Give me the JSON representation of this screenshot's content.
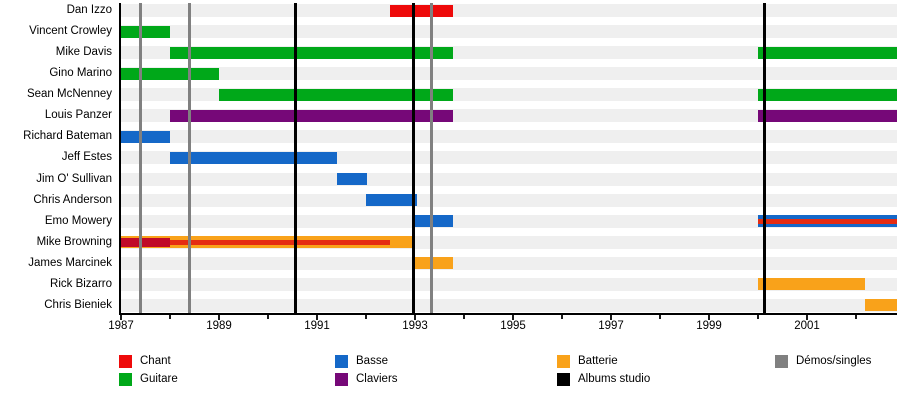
{
  "chart_data": {
    "type": "timeline",
    "description": "Band members timeline (Gantt-style), roles by color, 1987-2002",
    "x_axis": {
      "tick_start": 1987,
      "tick_end": 2002,
      "labeled_years": [
        1987,
        1989,
        1991,
        1993,
        1995,
        1997,
        1999,
        2001
      ],
      "domain_start": 1987.0,
      "domain_end": 2002.84
    },
    "colors": {
      "chant": "#ee0a0a",
      "guitare": "#00a819",
      "basse": "#1568c8",
      "claviers": "#760878",
      "batterie": "#f9a21a",
      "chant_dark": "#c00a28",
      "chant_stripe": "#e52c12",
      "album": "#000000",
      "demo": "#808080",
      "row_stripe": "#efefef"
    },
    "members": [
      {
        "name": "Dan Izzo",
        "bars": [
          {
            "color": "chant",
            "size": "full",
            "start": 1992.49,
            "end": 1993.78
          }
        ]
      },
      {
        "name": "Vincent Crowley",
        "bars": [
          {
            "color": "guitare",
            "size": "full",
            "start": 1987.0,
            "end": 1988.0
          }
        ]
      },
      {
        "name": "Mike Davis",
        "bars": [
          {
            "color": "guitare",
            "size": "full",
            "start": 1988.0,
            "end": 1993.78
          },
          {
            "color": "guitare",
            "size": "full",
            "start": 2000.0,
            "end": 2002.84
          }
        ]
      },
      {
        "name": "Gino Marino",
        "bars": [
          {
            "color": "guitare",
            "size": "full",
            "start": 1987.0,
            "end": 1989.0
          }
        ]
      },
      {
        "name": "Sean McNenney",
        "bars": [
          {
            "color": "guitare",
            "size": "full",
            "start": 1989.0,
            "end": 1993.78
          },
          {
            "color": "guitare",
            "size": "full",
            "start": 2000.0,
            "end": 2002.84
          }
        ]
      },
      {
        "name": "Louis Panzer",
        "bars": [
          {
            "color": "claviers",
            "size": "full",
            "start": 1988.0,
            "end": 1993.78
          },
          {
            "color": "claviers",
            "size": "full",
            "start": 2000.0,
            "end": 2002.84
          }
        ]
      },
      {
        "name": "Richard Bateman",
        "bars": [
          {
            "color": "basse",
            "size": "full",
            "start": 1987.0,
            "end": 1988.0
          }
        ]
      },
      {
        "name": "Jeff Estes",
        "bars": [
          {
            "color": "basse",
            "size": "full",
            "start": 1988.0,
            "end": 1991.41
          }
        ]
      },
      {
        "name": "Jim O' Sullivan",
        "bars": [
          {
            "color": "basse",
            "size": "full",
            "start": 1991.41,
            "end": 1992.02
          }
        ]
      },
      {
        "name": "Chris Anderson",
        "bars": [
          {
            "color": "basse",
            "size": "full",
            "start": 1992.0,
            "end": 1993.05
          }
        ]
      },
      {
        "name": "Emo Mowery",
        "bars": [
          {
            "color": "basse",
            "size": "full",
            "start": 1993.0,
            "end": 1993.78
          },
          {
            "color": "basse",
            "size": "full",
            "start": 2000.0,
            "end": 2002.84
          },
          {
            "color": "chant_stripe",
            "size": "thin",
            "start": 2000.0,
            "end": 2002.84
          }
        ]
      },
      {
        "name": "Mike Browning",
        "bars": [
          {
            "color": "batterie",
            "size": "full",
            "start": 1987.0,
            "end": 1993.0
          },
          {
            "color": "chant_dark",
            "size": "mid",
            "start": 1987.0,
            "end": 1988.0
          },
          {
            "color": "chant_stripe",
            "size": "thin",
            "start": 1988.0,
            "end": 1992.49
          }
        ]
      },
      {
        "name": "James Marcinek",
        "bars": [
          {
            "color": "batterie",
            "size": "full",
            "start": 1993.0,
            "end": 1993.78
          }
        ]
      },
      {
        "name": "Rick Bizarro",
        "bars": [
          {
            "color": "batterie",
            "size": "full",
            "start": 2000.0,
            "end": 2002.18
          }
        ]
      },
      {
        "name": "Chris Bieniek",
        "bars": [
          {
            "color": "batterie",
            "size": "full",
            "start": 2002.18,
            "end": 2002.84
          }
        ]
      }
    ],
    "event_lines": [
      {
        "type": "demo",
        "year": 1987.39
      },
      {
        "type": "demo",
        "year": 1988.4
      },
      {
        "type": "album",
        "year": 1990.57
      },
      {
        "type": "album",
        "year": 1992.96
      },
      {
        "type": "demo",
        "year": 1993.33
      },
      {
        "type": "album",
        "year": 2000.14
      }
    ],
    "legend": [
      {
        "label": "Chant",
        "color_key": "chant",
        "col": 0,
        "row": 0
      },
      {
        "label": "Guitare",
        "color_key": "guitare",
        "col": 0,
        "row": 1
      },
      {
        "label": "Basse",
        "color_key": "basse",
        "col": 1,
        "row": 0
      },
      {
        "label": "Claviers",
        "color_key": "claviers",
        "col": 1,
        "row": 1
      },
      {
        "label": "Batterie",
        "color_key": "batterie",
        "col": 2,
        "row": 0
      },
      {
        "label": "Albums studio",
        "color_key": "album",
        "col": 2,
        "row": 1
      },
      {
        "label": "Démos/singles",
        "color_key": "demo",
        "col": 3,
        "row": 0
      }
    ]
  }
}
